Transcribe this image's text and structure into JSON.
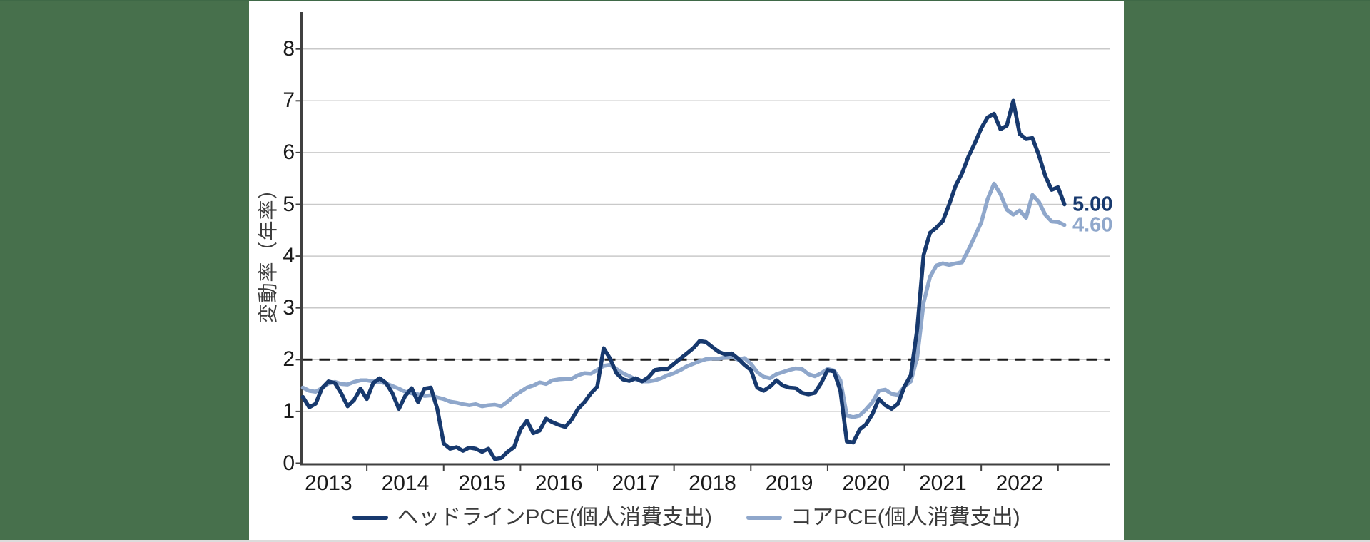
{
  "colors": {
    "side_band_green": "#47704c",
    "top_edge_green": "#3f6947",
    "background": "#ffffff",
    "gridline": "#c9c9c9",
    "axis": "#404040",
    "dashed_target": "#1a1a1a",
    "headline_navy": "#17396e",
    "core_lightblue": "#8fa7cb"
  },
  "chart": {
    "ylabel": "変動率（年率）"
  },
  "chart_data": {
    "type": "line",
    "title": "",
    "xlabel": "",
    "ylabel": "変動率（年率）",
    "ylim": [
      0,
      8
    ],
    "yticks": [
      0,
      1,
      2,
      3,
      4,
      5,
      6,
      7,
      8
    ],
    "xtick_years": [
      "2013",
      "2014",
      "2015",
      "2016",
      "2017",
      "2018",
      "2019",
      "2020",
      "2021",
      "2022"
    ],
    "frequency": "monthly",
    "x_start": "2013-03",
    "x_end": "2023-02",
    "grid": true,
    "target_line_value": 2,
    "legend_position": "bottom-center",
    "series": [
      {
        "name": "ヘッドラインPCE(個人消費支出)",
        "color": "#17396e",
        "end_label": "5.00",
        "end_value": 5.0,
        "values": [
          1.28,
          1.08,
          1.15,
          1.45,
          1.58,
          1.55,
          1.35,
          1.1,
          1.22,
          1.44,
          1.24,
          1.55,
          1.64,
          1.55,
          1.35,
          1.05,
          1.3,
          1.45,
          1.18,
          1.44,
          1.46,
          1.05,
          0.38,
          0.28,
          0.31,
          0.24,
          0.3,
          0.28,
          0.22,
          0.28,
          0.08,
          0.1,
          0.22,
          0.31,
          0.65,
          0.82,
          0.58,
          0.63,
          0.86,
          0.79,
          0.74,
          0.7,
          0.84,
          1.05,
          1.18,
          1.35,
          1.48,
          2.22,
          2.02,
          1.74,
          1.62,
          1.59,
          1.64,
          1.58,
          1.66,
          1.8,
          1.82,
          1.82,
          1.92,
          2.02,
          2.12,
          2.22,
          2.36,
          2.34,
          2.24,
          2.15,
          2.1,
          2.12,
          2.02,
          1.9,
          1.8,
          1.46,
          1.4,
          1.48,
          1.6,
          1.5,
          1.46,
          1.45,
          1.36,
          1.33,
          1.36,
          1.55,
          1.8,
          1.77,
          1.4,
          0.42,
          0.4,
          0.65,
          0.75,
          0.95,
          1.24,
          1.12,
          1.05,
          1.15,
          1.48,
          1.7,
          2.6,
          4.02,
          4.45,
          4.55,
          4.68,
          5.0,
          5.36,
          5.6,
          5.92,
          6.18,
          6.47,
          6.68,
          6.75,
          6.45,
          6.52,
          7.0,
          6.36,
          6.26,
          6.28,
          5.95,
          5.55,
          5.28,
          5.33,
          5.0
        ]
      },
      {
        "name": "コアPCE(個人消費支出)",
        "color": "#8fa7cb",
        "end_label": "4.60",
        "end_value": 4.6,
        "values": [
          1.46,
          1.4,
          1.38,
          1.45,
          1.54,
          1.57,
          1.53,
          1.52,
          1.57,
          1.6,
          1.6,
          1.58,
          1.57,
          1.54,
          1.49,
          1.44,
          1.38,
          1.35,
          1.33,
          1.3,
          1.31,
          1.27,
          1.24,
          1.19,
          1.17,
          1.14,
          1.12,
          1.14,
          1.1,
          1.12,
          1.13,
          1.1,
          1.19,
          1.3,
          1.38,
          1.46,
          1.5,
          1.56,
          1.53,
          1.6,
          1.62,
          1.63,
          1.63,
          1.7,
          1.74,
          1.73,
          1.8,
          1.88,
          1.9,
          1.82,
          1.74,
          1.68,
          1.62,
          1.58,
          1.58,
          1.6,
          1.64,
          1.7,
          1.74,
          1.8,
          1.87,
          1.92,
          1.97,
          2.01,
          2.02,
          2.02,
          2.04,
          2.06,
          2.0,
          2.03,
          1.92,
          1.76,
          1.67,
          1.64,
          1.72,
          1.76,
          1.8,
          1.83,
          1.82,
          1.72,
          1.68,
          1.74,
          1.82,
          1.79,
          1.6,
          0.92,
          0.89,
          0.92,
          1.04,
          1.18,
          1.4,
          1.42,
          1.34,
          1.32,
          1.48,
          1.58,
          2.05,
          3.1,
          3.6,
          3.82,
          3.86,
          3.83,
          3.86,
          3.88,
          4.12,
          4.38,
          4.65,
          5.1,
          5.4,
          5.2,
          4.9,
          4.8,
          4.88,
          4.74,
          5.18,
          5.05,
          4.8,
          4.67,
          4.66,
          4.6
        ]
      }
    ]
  }
}
